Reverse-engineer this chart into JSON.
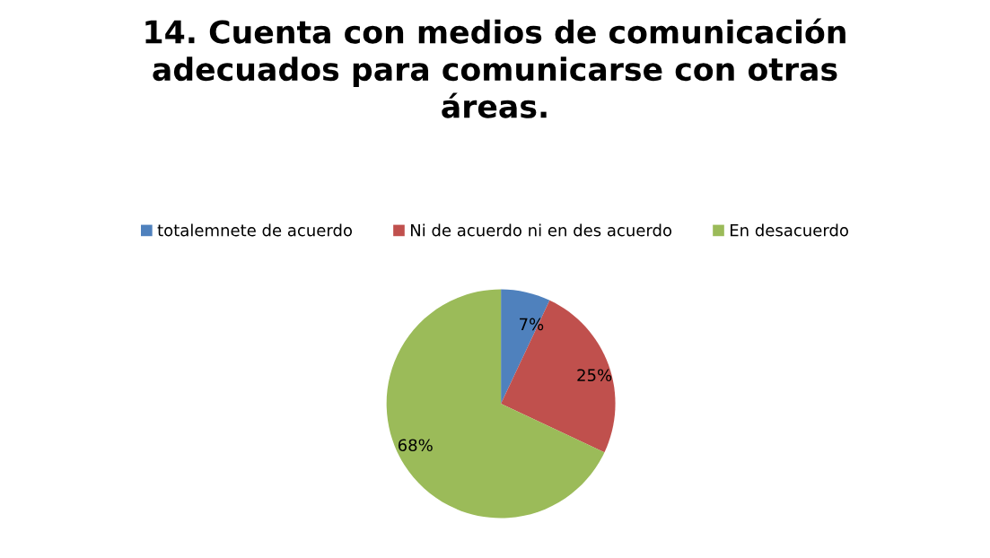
{
  "chart_data": {
    "type": "pie",
    "title": "14. Cuenta con medios de comunicación adecuados para comunicarse con otras áreas.",
    "categories": [
      "totalemnete de acuerdo",
      "Ni de acuerdo ni en des acuerdo",
      "En desacuerdo"
    ],
    "values": [
      7,
      25,
      68
    ],
    "value_labels": [
      "7%",
      "25%",
      "68%"
    ],
    "colors": [
      "#4f81bd",
      "#c0504d",
      "#9bbb59"
    ],
    "legend": "top"
  }
}
